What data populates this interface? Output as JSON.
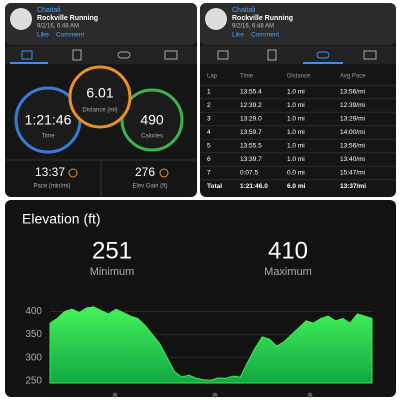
{
  "activity": {
    "user": "Chaitali",
    "title": "Rockville Running",
    "datetime": "9/2/16, 6:48 AM",
    "like": "Like",
    "comment": "Comment",
    "time": {
      "value": "1:21:46",
      "label": "Time"
    },
    "distance": {
      "value": "6.01",
      "label": "Distance (mi)"
    },
    "calories": {
      "value": "490",
      "label": "Calories"
    },
    "pace": {
      "value": "13:37",
      "label": "Pace (min/mi)"
    },
    "elev_gain": {
      "value": "276",
      "label": "Elev Gain (ft)"
    }
  },
  "laps": {
    "user": "Chaitali",
    "title": "Rockville Running",
    "datetime": "9/2/16, 6:48 AM",
    "like": "Like",
    "comment": "Comment",
    "columns": [
      "Lap",
      "Time",
      "Distance",
      "Avg Pace"
    ],
    "rows": [
      [
        "1",
        "13:55.4",
        "1.0 mi",
        "13:56/mi"
      ],
      [
        "2",
        "12:39.2",
        "1.0 mi",
        "12:39/mi"
      ],
      [
        "3",
        "13:29.0",
        "1.0 mi",
        "13:29/mi"
      ],
      [
        "4",
        "13:59.7",
        "1.0 mi",
        "14:00/mi"
      ],
      [
        "5",
        "13:55.5",
        "1.0 mi",
        "13:56/mi"
      ],
      [
        "6",
        "13:39.7",
        "1.0 mi",
        "13:40/mi"
      ],
      [
        "7",
        "0:07.5",
        "0.0 mi",
        "15:47/mi"
      ],
      [
        "Total",
        "1:21:46.0",
        "6.0 mi",
        "13:37/mi"
      ]
    ]
  },
  "elevation": {
    "type": "area",
    "title": "Elevation (ft)",
    "min": {
      "value": "251",
      "label": "Minimum"
    },
    "max": {
      "value": "410",
      "label": "Maximum"
    },
    "color": "#3ee84f",
    "ylim": [
      245,
      425
    ],
    "yticks": [
      250,
      300,
      350,
      400
    ],
    "values": [
      375,
      385,
      400,
      405,
      398,
      408,
      410,
      402,
      395,
      405,
      398,
      390,
      385,
      370,
      350,
      330,
      300,
      270,
      258,
      262,
      255,
      252,
      251,
      256,
      255,
      260,
      258,
      290,
      320,
      345,
      340,
      325,
      335,
      350,
      365,
      380,
      375,
      385,
      390,
      380,
      385,
      375,
      395,
      390,
      385
    ]
  }
}
